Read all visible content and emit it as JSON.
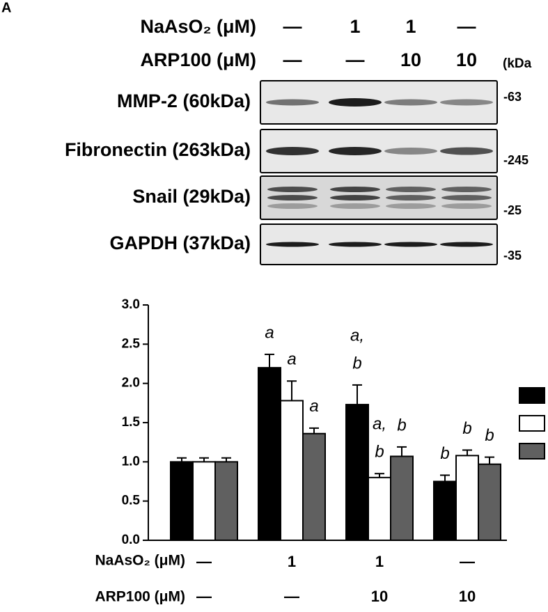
{
  "panel_label": "A",
  "blot": {
    "conditions": [
      {
        "label": "NaAsO₂ (μM)",
        "values": [
          "—",
          "1",
          "1",
          "—"
        ]
      },
      {
        "label": "ARP100 (μM)",
        "values": [
          "—",
          "—",
          "10",
          "10"
        ]
      }
    ],
    "unit_label": "(kDa",
    "rows": [
      {
        "label": "MMP-2 (60kDa)",
        "marker": "-63"
      },
      {
        "label": "Fibronectin (263kDa)",
        "marker": "-245"
      },
      {
        "label": "Snail (29kDa)",
        "marker": "-25"
      },
      {
        "label": "GAPDH (37kDa)",
        "marker": "-35"
      }
    ]
  },
  "chart_data": {
    "type": "bar",
    "category_labels": [
      "NaAsO₂ (μM)",
      "ARP100 (μM)"
    ],
    "categories": [
      [
        "—",
        "—"
      ],
      [
        "1",
        "—"
      ],
      [
        "1",
        "10"
      ],
      [
        "—",
        "10"
      ]
    ],
    "ylim": [
      0,
      3
    ],
    "yticks": [
      {
        "value": 0,
        "label": "0.0"
      },
      0.5,
      {
        "value": 1,
        "label": "1.0"
      },
      1.5,
      {
        "value": 2,
        "label": "2.0"
      },
      2.5,
      {
        "value": 3,
        "label": "3.0"
      }
    ],
    "series": [
      {
        "color": "#000000",
        "values": [
          1.0,
          2.2,
          1.73,
          0.75
        ],
        "errors": [
          0.05,
          0.17,
          0.25,
          0.08
        ],
        "annotations": [
          null,
          [
            "a"
          ],
          [
            "a,",
            "b"
          ],
          [
            "b"
          ]
        ]
      },
      {
        "color": "#ffffff",
        "values": [
          1.0,
          1.78,
          0.8,
          1.08
        ],
        "errors": [
          0.05,
          0.25,
          0.05,
          0.07
        ],
        "annotations": [
          null,
          [
            "a"
          ],
          [
            "a,",
            "b"
          ],
          [
            "b"
          ]
        ]
      },
      {
        "color": "#606060",
        "values": [
          1.0,
          1.36,
          1.07,
          0.97
        ],
        "errors": [
          0.05,
          0.07,
          0.12,
          0.09
        ],
        "annotations": [
          null,
          [
            "a"
          ],
          [
            "b"
          ],
          [
            "b"
          ]
        ]
      }
    ]
  }
}
